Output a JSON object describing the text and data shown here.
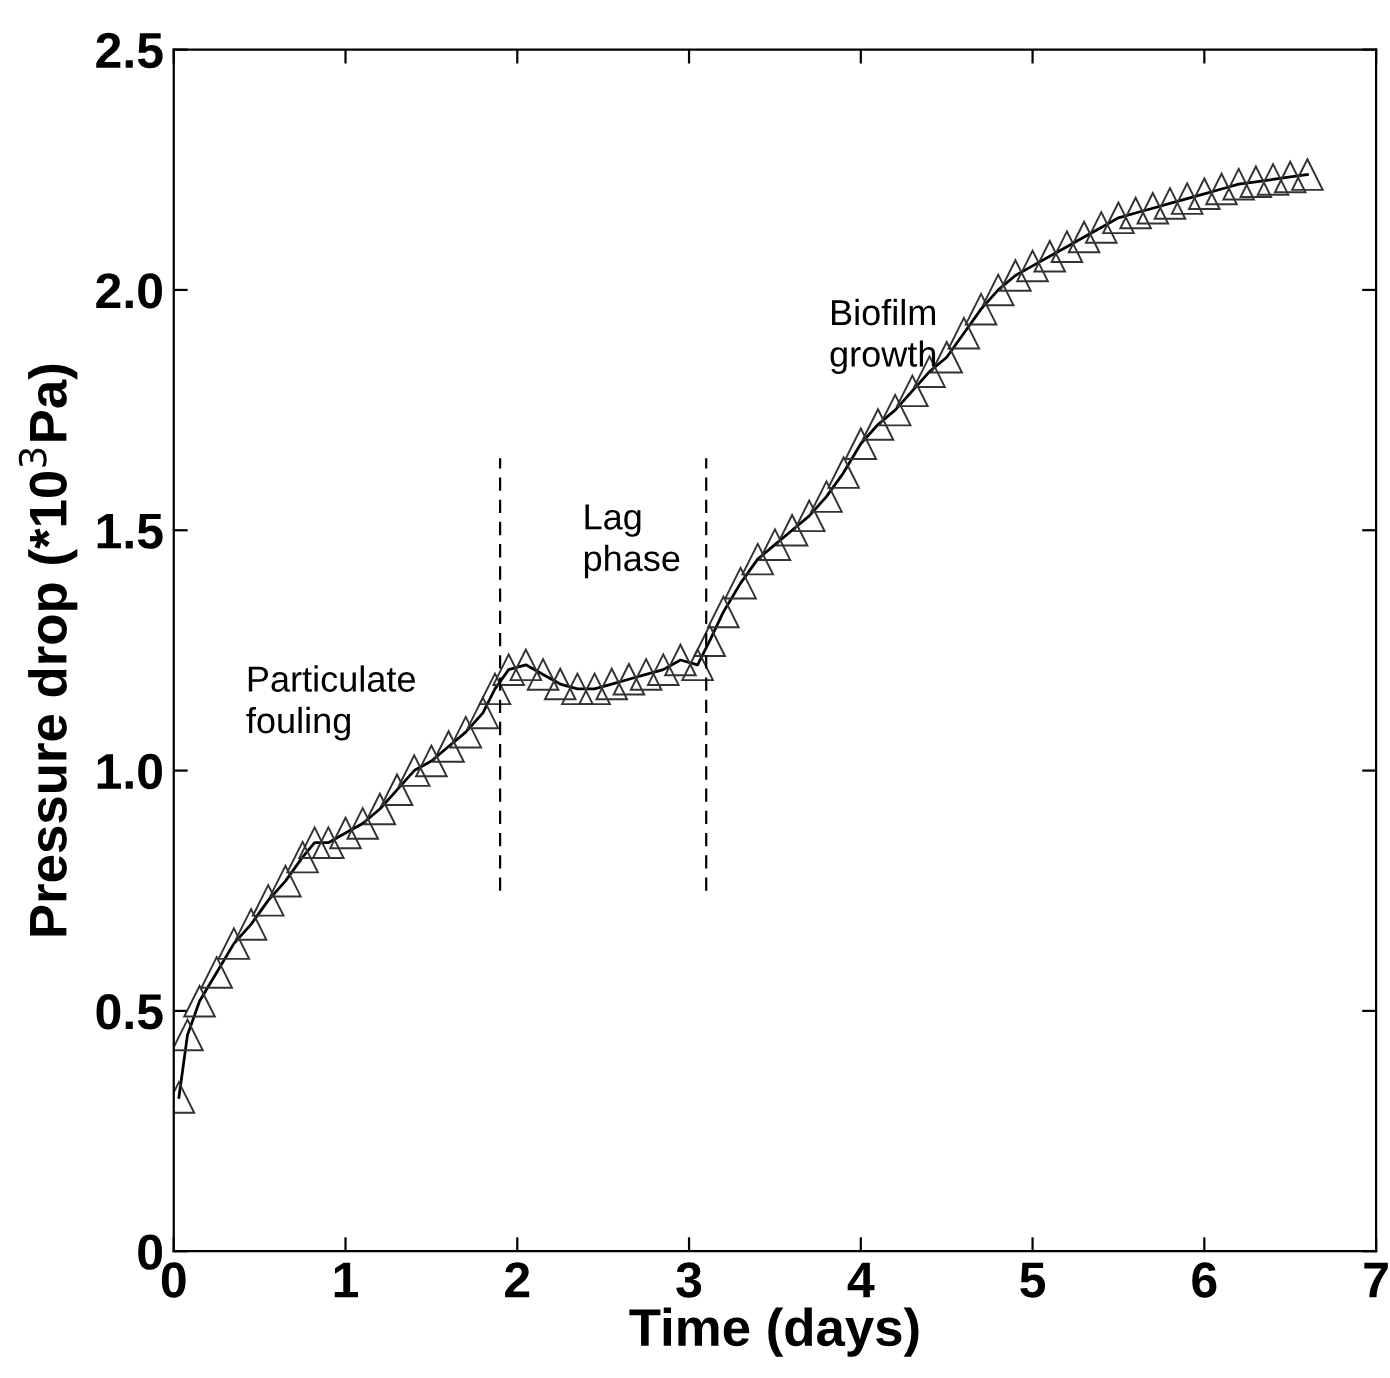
{
  "chart_data": {
    "type": "line",
    "xlabel": "Time (days)",
    "ylabel": "Pressure drop (*10$^{3}$Pa)",
    "xlim": [
      0,
      7
    ],
    "ylim": [
      0,
      2.5
    ],
    "xticks": [
      0,
      1,
      2,
      3,
      4,
      5,
      6,
      7
    ],
    "yticks": [
      0,
      0.5,
      {
        "value": 1,
        "label": "1.0"
      },
      {
        "value": 1.5,
        "label": "1.5"
      },
      {
        "value": 2,
        "label": "2.0"
      },
      {
        "value": 2.5,
        "label": "2.5"
      }
    ],
    "marker": "triangle",
    "grid": false,
    "legend": false,
    "series": [
      {
        "color": "#000000",
        "x": [
          0.03,
          0.08,
          0.15,
          0.25,
          0.35,
          0.45,
          0.55,
          0.65,
          0.75,
          0.82,
          0.9,
          1.0,
          1.1,
          1.2,
          1.3,
          1.4,
          1.5,
          1.6,
          1.7,
          1.8,
          1.87,
          1.95,
          2.05,
          2.15,
          2.25,
          2.35,
          2.45,
          2.55,
          2.65,
          2.75,
          2.85,
          2.95,
          3.05,
          3.12,
          3.2,
          3.3,
          3.4,
          3.5,
          3.6,
          3.7,
          3.8,
          3.9,
          4.0,
          4.1,
          4.2,
          4.3,
          4.4,
          4.5,
          4.6,
          4.7,
          4.8,
          4.9,
          5.0,
          5.1,
          5.2,
          5.3,
          5.4,
          5.5,
          5.6,
          5.7,
          5.8,
          5.9,
          6.0,
          6.1,
          6.2,
          6.3,
          6.4,
          6.5,
          6.6
        ],
        "values": [
          0.32,
          0.45,
          0.52,
          0.58,
          0.64,
          0.68,
          0.73,
          0.77,
          0.82,
          0.85,
          0.85,
          0.87,
          0.89,
          0.92,
          0.96,
          1.0,
          1.02,
          1.05,
          1.08,
          1.12,
          1.17,
          1.21,
          1.22,
          1.2,
          1.18,
          1.17,
          1.17,
          1.18,
          1.19,
          1.2,
          1.21,
          1.23,
          1.22,
          1.27,
          1.33,
          1.39,
          1.44,
          1.47,
          1.5,
          1.53,
          1.57,
          1.62,
          1.68,
          1.72,
          1.75,
          1.79,
          1.83,
          1.86,
          1.91,
          1.96,
          2.0,
          2.03,
          2.05,
          2.07,
          2.09,
          2.11,
          2.13,
          2.15,
          2.16,
          2.17,
          2.18,
          2.19,
          2.2,
          2.21,
          2.22,
          2.225,
          2.23,
          2.235,
          2.24
        ]
      }
    ],
    "ref_lines": [
      {
        "axis": "x",
        "value": 1.9,
        "line_style": "dashed",
        "color": "#000000"
      },
      {
        "axis": "x",
        "value": 3.1,
        "line_style": "dashed",
        "color": "#000000"
      }
    ],
    "annotations": [
      "Particulate\nfouling",
      "Lag\nphase",
      "Biofilm\ngrowth"
    ]
  }
}
